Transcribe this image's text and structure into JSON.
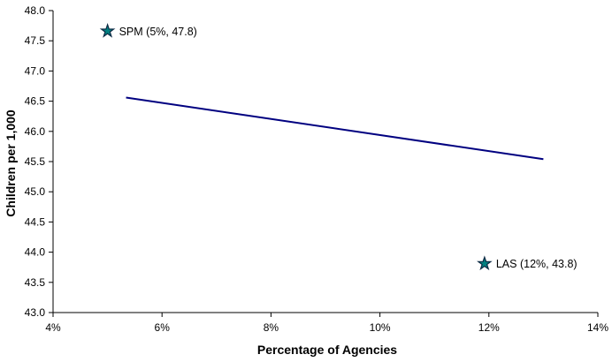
{
  "chart_data": {
    "type": "scatter",
    "title": "",
    "xlabel": "Percentage of Agencies",
    "ylabel": "Children per 1,000",
    "xlim": [
      4,
      14
    ],
    "ylim": [
      43,
      48
    ],
    "grid": false,
    "legend": false,
    "x_ticks": [
      {
        "value": 4,
        "label": "4%"
      },
      {
        "value": 6,
        "label": "6%"
      },
      {
        "value": 8,
        "label": "8%"
      },
      {
        "value": 10,
        "label": "10%"
      },
      {
        "value": 12,
        "label": "12%"
      },
      {
        "value": 14,
        "label": "14%"
      }
    ],
    "y_ticks": [
      {
        "value": 48.0,
        "label": "48.0"
      },
      {
        "value": 47.5,
        "label": "47.5"
      },
      {
        "value": 47.0,
        "label": "47.0"
      },
      {
        "value": 46.5,
        "label": "46.5"
      },
      {
        "value": 46.0,
        "label": "46.0"
      },
      {
        "value": 45.5,
        "label": "45.5"
      },
      {
        "value": 45.0,
        "label": "45.0"
      },
      {
        "value": 44.5,
        "label": "44.5"
      },
      {
        "value": 44.0,
        "label": "44.0"
      },
      {
        "value": 43.5,
        "label": "43.5"
      },
      {
        "value": 43.0,
        "label": "43.0"
      }
    ],
    "trend_line": {
      "x": [
        5.34,
        13.0
      ],
      "y": [
        46.56,
        45.54
      ]
    },
    "points": [
      {
        "name": "SPM",
        "label": "SPM (5%, 47.8)",
        "x": 5,
        "y": 47.8,
        "plotted": {
          "x": 5.0,
          "y": 47.66
        },
        "marker": "star"
      },
      {
        "name": "LAS",
        "label": "LAS (12%, 43.8)",
        "x": 12,
        "y": 43.8,
        "plotted": {
          "x": 11.92,
          "y": 43.81
        },
        "marker": "star"
      }
    ],
    "colors": {
      "background": "#ffffff",
      "axis": "#000000",
      "text": "#000000",
      "trend_line": "#000080",
      "marker_fill": "#008080",
      "marker_stroke": "#0d2b45"
    }
  }
}
